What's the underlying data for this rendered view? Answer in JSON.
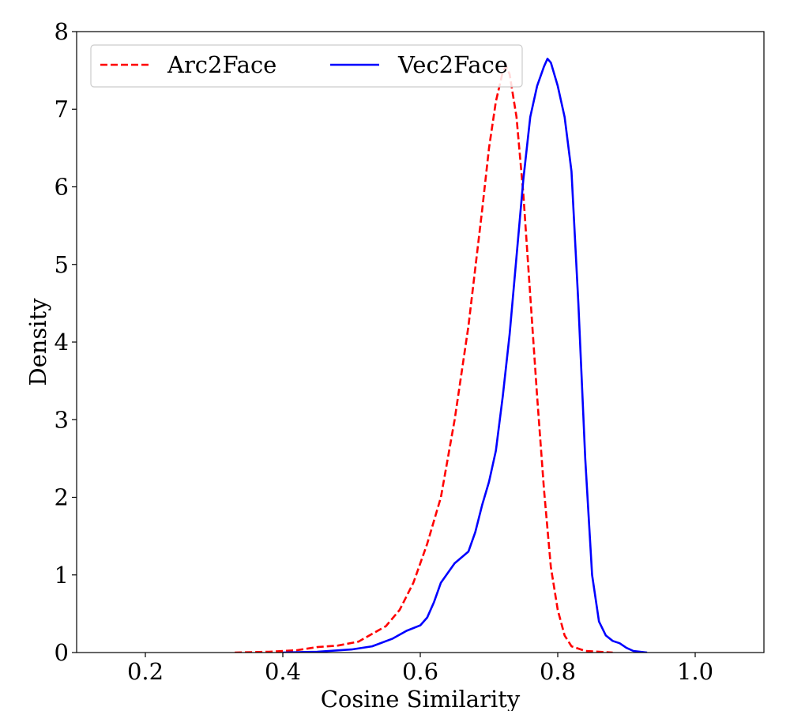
{
  "chart_data": {
    "type": "line",
    "title": "",
    "xlabel": "Cosine Similarity",
    "ylabel": "Density",
    "xlim": [
      0.1,
      1.1
    ],
    "ylim": [
      0,
      8
    ],
    "x_ticks": [
      0.2,
      0.4,
      0.6,
      0.8,
      1.0
    ],
    "x_tick_labels": [
      "0.2",
      "0.4",
      "0.6",
      "0.8",
      "1.0"
    ],
    "y_ticks": [
      0,
      1,
      2,
      3,
      4,
      5,
      6,
      7,
      8
    ],
    "y_tick_labels": [
      "0",
      "1",
      "2",
      "3",
      "4",
      "5",
      "6",
      "7",
      "8"
    ],
    "grid": false,
    "legend": {
      "placement": "top-left",
      "columns": 2
    },
    "series": [
      {
        "name": "Arc2Face",
        "color": "#ff0000",
        "style": "dashed",
        "points": [
          [
            0.33,
            0.0
          ],
          [
            0.38,
            0.01
          ],
          [
            0.42,
            0.03
          ],
          [
            0.45,
            0.07
          ],
          [
            0.48,
            0.09
          ],
          [
            0.51,
            0.14
          ],
          [
            0.53,
            0.24
          ],
          [
            0.55,
            0.34
          ],
          [
            0.57,
            0.55
          ],
          [
            0.59,
            0.9
          ],
          [
            0.61,
            1.4
          ],
          [
            0.63,
            2.0
          ],
          [
            0.65,
            3.0
          ],
          [
            0.67,
            4.2
          ],
          [
            0.69,
            5.7
          ],
          [
            0.7,
            6.5
          ],
          [
            0.71,
            7.1
          ],
          [
            0.72,
            7.48
          ],
          [
            0.725,
            7.55
          ],
          [
            0.73,
            7.45
          ],
          [
            0.74,
            6.9
          ],
          [
            0.75,
            5.9
          ],
          [
            0.76,
            4.6
          ],
          [
            0.77,
            3.3
          ],
          [
            0.78,
            2.1
          ],
          [
            0.79,
            1.1
          ],
          [
            0.8,
            0.55
          ],
          [
            0.81,
            0.22
          ],
          [
            0.82,
            0.08
          ],
          [
            0.84,
            0.02
          ],
          [
            0.88,
            0.0
          ]
        ]
      },
      {
        "name": "Vec2Face",
        "color": "#0000ff",
        "style": "solid",
        "points": [
          [
            0.4,
            0.0
          ],
          [
            0.45,
            0.01
          ],
          [
            0.5,
            0.04
          ],
          [
            0.53,
            0.08
          ],
          [
            0.56,
            0.18
          ],
          [
            0.58,
            0.28
          ],
          [
            0.6,
            0.35
          ],
          [
            0.61,
            0.45
          ],
          [
            0.62,
            0.65
          ],
          [
            0.63,
            0.9
          ],
          [
            0.65,
            1.15
          ],
          [
            0.67,
            1.3
          ],
          [
            0.68,
            1.55
          ],
          [
            0.69,
            1.9
          ],
          [
            0.7,
            2.2
          ],
          [
            0.71,
            2.6
          ],
          [
            0.72,
            3.3
          ],
          [
            0.73,
            4.1
          ],
          [
            0.74,
            5.1
          ],
          [
            0.75,
            6.1
          ],
          [
            0.76,
            6.9
          ],
          [
            0.77,
            7.3
          ],
          [
            0.78,
            7.55
          ],
          [
            0.785,
            7.65
          ],
          [
            0.79,
            7.6
          ],
          [
            0.8,
            7.3
          ],
          [
            0.81,
            6.9
          ],
          [
            0.82,
            6.2
          ],
          [
            0.83,
            4.5
          ],
          [
            0.84,
            2.5
          ],
          [
            0.85,
            1.0
          ],
          [
            0.86,
            0.4
          ],
          [
            0.87,
            0.22
          ],
          [
            0.88,
            0.15
          ],
          [
            0.89,
            0.12
          ],
          [
            0.9,
            0.06
          ],
          [
            0.91,
            0.02
          ],
          [
            0.93,
            0.0
          ]
        ]
      }
    ]
  }
}
